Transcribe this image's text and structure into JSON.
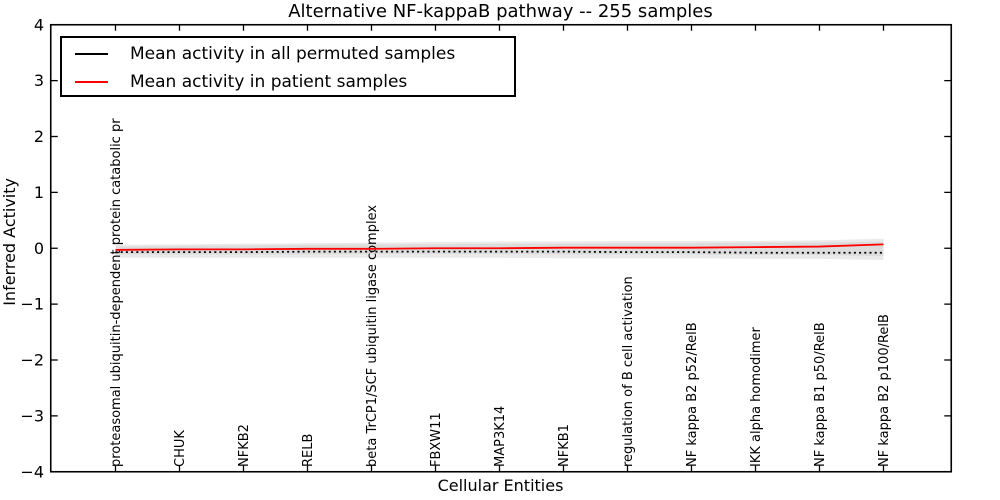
{
  "chart_data": {
    "type": "line",
    "title": "Alternative NF-kappaB pathway -- 255 samples",
    "xlabel": "Cellular Entities",
    "ylabel": "Inferred Activity",
    "ylim": [
      -4,
      4
    ],
    "yticks": [
      4,
      3,
      2,
      1,
      0,
      -1,
      -2,
      -3,
      -4
    ],
    "ytick_labels": [
      "4",
      "3",
      "2",
      "1",
      "0",
      "−1",
      "−2",
      "−3",
      "−4"
    ],
    "grid": false,
    "legend_position": "upper left",
    "sample_count_in_title": 255,
    "categories": [
      "proteasomal ubiquitin-dependent protein catabolic pr",
      "CHUK",
      "NFKB2",
      "RELB",
      "beta TrCP1/SCF ubiquitin ligase complex",
      "FBXW11",
      "MAP3K14",
      "NFKB1",
      "regulation of B cell activation",
      "NF kappa B2 p52/RelB",
      "IKK alpha homodimer",
      "NF kappa B1 p50/RelB",
      "NF kappa B2 p100/RelB"
    ],
    "series": [
      {
        "name": "Mean activity in all permuted samples",
        "color": "#000000",
        "style": "dotted",
        "values": [
          -0.07,
          -0.07,
          -0.07,
          -0.06,
          -0.06,
          -0.06,
          -0.06,
          -0.06,
          -0.07,
          -0.07,
          -0.08,
          -0.08,
          -0.08
        ]
      },
      {
        "name": "Mean activity in patient samples",
        "color": "#ff0000",
        "style": "solid",
        "values": [
          -0.03,
          -0.02,
          -0.02,
          -0.01,
          -0.01,
          0.0,
          0.0,
          0.01,
          0.01,
          0.01,
          0.02,
          0.03,
          0.07
        ]
      }
    ],
    "bands": [
      {
        "name": "permuted-spread-outer",
        "color": "#eaeaea",
        "upper": [
          0.06,
          0.07,
          0.08,
          0.09,
          0.1,
          0.11,
          0.12,
          0.12,
          0.13,
          0.13,
          0.13,
          0.14,
          0.17
        ],
        "lower": [
          -0.17,
          -0.17,
          -0.17,
          -0.17,
          -0.17,
          -0.17,
          -0.17,
          -0.18,
          -0.18,
          -0.18,
          -0.19,
          -0.19,
          -0.21
        ]
      },
      {
        "name": "permuted-spread-inner",
        "color": "#dcdcdc",
        "upper": [
          0.03,
          0.04,
          0.05,
          0.06,
          0.07,
          0.07,
          0.08,
          0.08,
          0.09,
          0.09,
          0.1,
          0.1,
          0.12
        ],
        "lower": [
          -0.11,
          -0.11,
          -0.11,
          -0.11,
          -0.1,
          -0.1,
          -0.1,
          -0.11,
          -0.11,
          -0.11,
          -0.12,
          -0.12,
          -0.14
        ]
      }
    ]
  },
  "colors": {
    "axis": "#000000",
    "background": "#ffffff",
    "permuted_line": "#000000",
    "patient_line": "#ff0000",
    "band_outer": "#eaeaea",
    "band_inner": "#dcdcdc"
  }
}
